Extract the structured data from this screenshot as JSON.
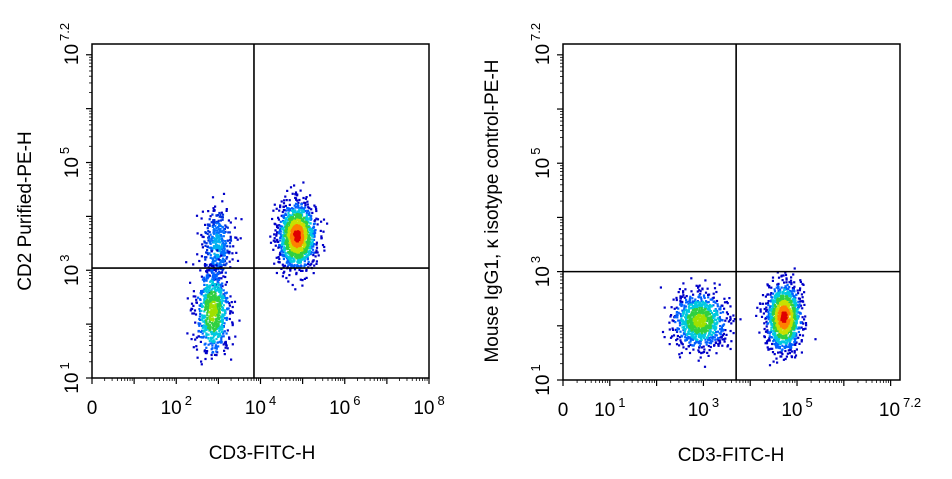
{
  "chart_data": [
    {
      "type": "scatter",
      "subtype": "flow-cytometry-density-dot-plot",
      "xlabel": "CD3-FITC-H",
      "ylabel": "CD2 Purified-PE-H",
      "x_scale": "log",
      "y_scale": "log",
      "xlim": [
        1,
        100000000
      ],
      "ylim": [
        10,
        15848932
      ],
      "x_ticks": [
        {
          "value": 1,
          "base": "0",
          "exp": ""
        },
        {
          "value": 100,
          "base": "10",
          "exp": "2"
        },
        {
          "value": 10000,
          "base": "10",
          "exp": "4"
        },
        {
          "value": 1000000,
          "base": "10",
          "exp": "6"
        },
        {
          "value": 100000000,
          "base": "10",
          "exp": "8"
        }
      ],
      "y_ticks": [
        {
          "value": 10,
          "base": "10",
          "exp": "1"
        },
        {
          "value": 1000,
          "base": "10",
          "exp": "3"
        },
        {
          "value": 100000,
          "base": "10",
          "exp": "5"
        },
        {
          "value": 15848932,
          "base": "10",
          "exp": "7.2"
        }
      ],
      "quadrant_gate": {
        "x": 7000,
        "y": 1100
      },
      "populations": [
        {
          "x_center": 70000,
          "y_center": 4500,
          "x_spread_decades": 0.22,
          "y_spread_decades": 0.3,
          "count": 1400,
          "peak_color": "red"
        },
        {
          "x_center": 900,
          "y_center": 3000,
          "x_spread_decades": 0.18,
          "y_spread_decades": 0.35,
          "count": 380,
          "peak_color": "blue"
        },
        {
          "x_center": 700,
          "y_center": 180,
          "x_spread_decades": 0.2,
          "y_spread_decades": 0.4,
          "count": 700,
          "peak_color": "green"
        }
      ],
      "grid": false
    },
    {
      "type": "scatter",
      "subtype": "flow-cytometry-density-dot-plot",
      "xlabel": "CD3-FITC-H",
      "ylabel": "Mouse IgG1, κ isotype control-PE-H",
      "x_scale": "log",
      "y_scale": "log",
      "xlim": [
        1,
        15848932
      ],
      "ylim": [
        10,
        15848932
      ],
      "x_ticks": [
        {
          "value": 1,
          "base": "0",
          "exp": ""
        },
        {
          "value": 10,
          "base": "10",
          "exp": "1"
        },
        {
          "value": 1000,
          "base": "10",
          "exp": "3"
        },
        {
          "value": 100000,
          "base": "10",
          "exp": "5"
        },
        {
          "value": 15848932,
          "base": "10",
          "exp": "7.2"
        }
      ],
      "y_ticks": [
        {
          "value": 10,
          "base": "10",
          "exp": "1"
        },
        {
          "value": 1000,
          "base": "10",
          "exp": "3"
        },
        {
          "value": 100000,
          "base": "10",
          "exp": "5"
        },
        {
          "value": 15848932,
          "base": "10",
          "exp": "7.2"
        }
      ],
      "quadrant_gate": {
        "x": 5000,
        "y": 1000
      },
      "populations": [
        {
          "x_center": 50000,
          "y_center": 150,
          "x_spread_decades": 0.18,
          "y_spread_decades": 0.3,
          "count": 1200,
          "peak_color": "red"
        },
        {
          "x_center": 800,
          "y_center": 130,
          "x_spread_decades": 0.28,
          "y_spread_decades": 0.25,
          "count": 900,
          "peak_color": "green"
        }
      ],
      "grid": false
    }
  ]
}
